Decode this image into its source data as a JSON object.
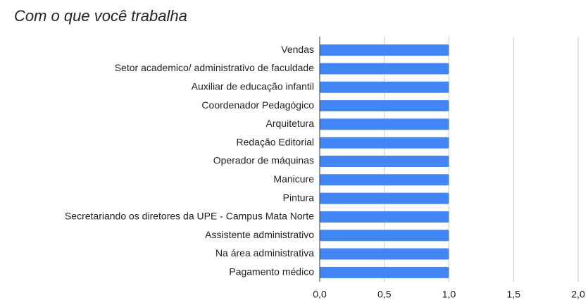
{
  "chart_data": {
    "type": "bar",
    "orientation": "horizontal",
    "title": "Com o que você trabalha",
    "categories": [
      "Vendas",
      "Setor academico/ administrativo de faculdade",
      "Auxiliar de educação infantil",
      "Coordenador Pedagógico",
      "Arquitetura",
      "Redação Editorial",
      "Operador de máquinas",
      "Manicure",
      "Pintura",
      "Secretariando os diretores da UPE - Campus Mata Norte",
      "Assistente administrativo",
      "Na área administrativa",
      "Pagamento médico"
    ],
    "values": [
      1,
      1,
      1,
      1,
      1,
      1,
      1,
      1,
      1,
      1,
      1,
      1,
      1
    ],
    "color": "#4285f4",
    "xlim": [
      0,
      2
    ],
    "xticks": [
      {
        "value": 0,
        "label": "0,0"
      },
      {
        "value": 0.5,
        "label": "0,5"
      },
      {
        "value": 1,
        "label": "1,0"
      },
      {
        "value": 1.5,
        "label": "1,5"
      },
      {
        "value": 2,
        "label": "2,0"
      }
    ],
    "grid": true
  }
}
